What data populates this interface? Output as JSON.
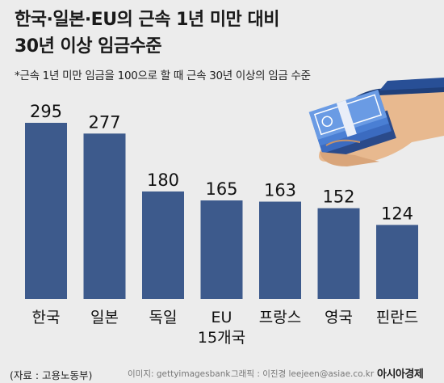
{
  "title_line1": "한국·일본·EU의 근속 1년 미만 대비",
  "title_line2": "30년 이상 임금수준",
  "subtitle": "*근속 1년 미만 임금을 100으로 할 때 근속 30년 이상의 임금 수준",
  "footer": {
    "source": "(자료 : 고용노동부)",
    "image_credit": "이미지: gettyimagesbank",
    "graphic_credit": "그래픽 : 이진경 leejeen@asiae.co.kr",
    "brand": "아시아경제"
  },
  "colors": {
    "bar": "#3d5a8c",
    "background": "#ececec"
  },
  "illustration": "hand-holding-money-icon",
  "chart_data": {
    "type": "bar",
    "title": "한국·일본·EU의 근속 1년 미만 대비 30년 이상 임금수준",
    "categories": [
      "한국",
      "일본",
      "독일",
      "EU\n15개국",
      "프랑스",
      "영국",
      "핀란드"
    ],
    "values": [
      295,
      277,
      180,
      165,
      163,
      152,
      124
    ],
    "ylim": [
      0,
      295
    ],
    "grid": false,
    "legend": "none"
  }
}
